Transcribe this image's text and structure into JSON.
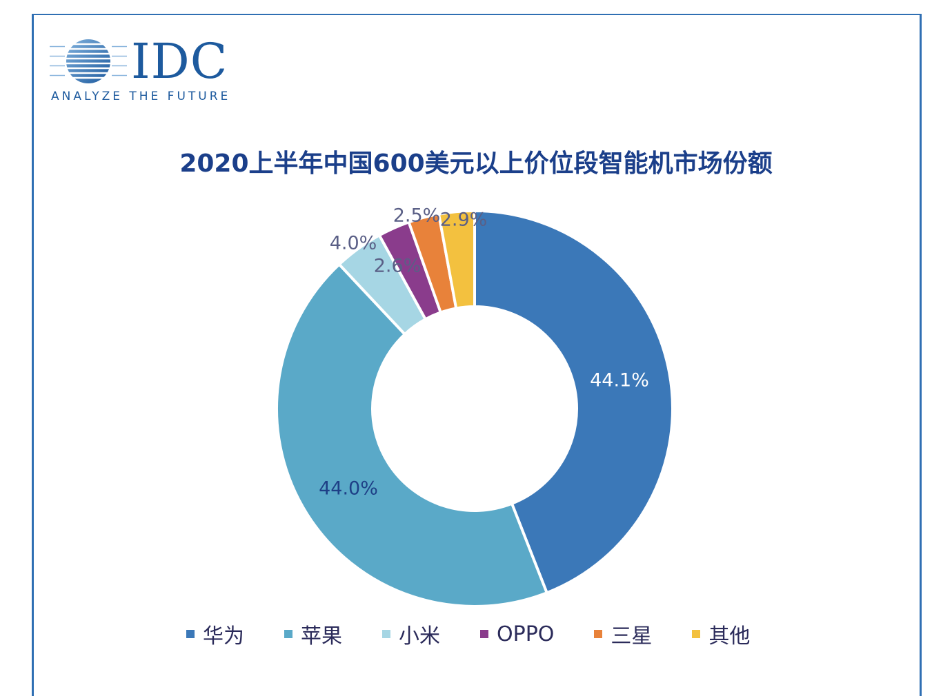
{
  "logo": {
    "word": "IDC",
    "tagline": "ANALYZE THE FUTURE"
  },
  "chart_data": {
    "type": "pie",
    "donut": true,
    "title": "2020上半年中国600美元以上价位段智能机市场份额",
    "categories": [
      "华为",
      "苹果",
      "小米",
      "OPPO",
      "三星",
      "其他"
    ],
    "values": [
      44.1,
      44.0,
      4.0,
      2.6,
      2.5,
      2.9
    ],
    "data_labels": [
      "44.1%",
      "44.0%",
      "4.0%",
      "2.6%",
      "2.5%",
      "2.9%"
    ],
    "colors": [
      "#3b78b8",
      "#5aa9c8",
      "#a6d6e4",
      "#8a3c8c",
      "#e8823a",
      "#f3c13f"
    ],
    "legend_position": "bottom"
  }
}
